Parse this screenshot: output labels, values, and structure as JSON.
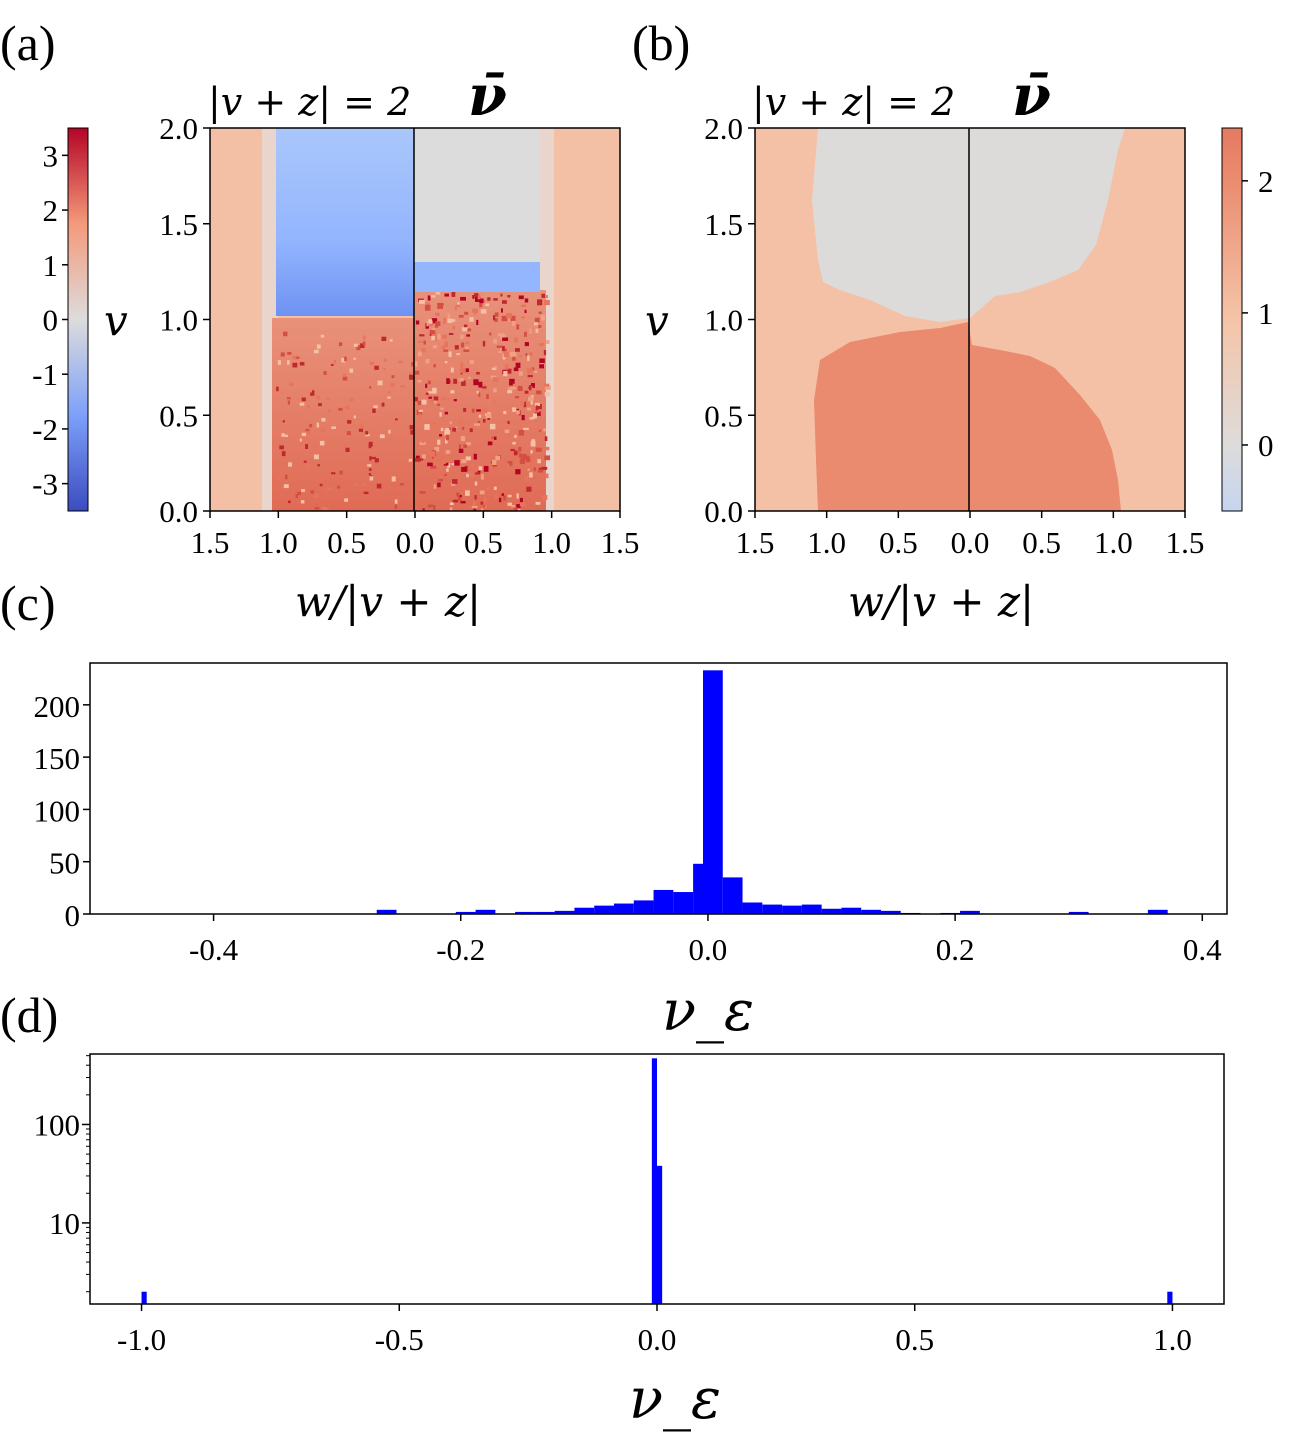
{
  "panels": {
    "a": {
      "label": "(a)",
      "title_left": "|v + z| = 2",
      "title_right": "ν̄",
      "ylabel": "v",
      "xlabel": "w/|v + z|",
      "x_ticks": [
        "1.5",
        "1.0",
        "0.5",
        "0.0",
        "0.5",
        "1.0",
        "1.5"
      ],
      "y_ticks": [
        "0.0",
        "0.5",
        "1.0",
        "1.5",
        "2.0"
      ],
      "colorbar_ticks": [
        "3",
        "2",
        "1",
        "0",
        "-1",
        "-2",
        "-3"
      ],
      "colorbar_range": [
        -3.5,
        3.5
      ]
    },
    "b": {
      "label": "(b)",
      "title_left": "|v + z| = 2",
      "title_right": "ν̄",
      "ylabel": "v",
      "xlabel": "w/|v + z|",
      "x_ticks": [
        "1.5",
        "1.0",
        "0.5",
        "0.0",
        "0.5",
        "1.0",
        "1.5"
      ],
      "y_ticks": [
        "0.0",
        "0.5",
        "1.0",
        "1.5",
        "2.0"
      ],
      "colorbar_ticks": [
        "2",
        "1",
        "0"
      ],
      "colorbar_range": [
        -0.5,
        2.4
      ]
    },
    "c": {
      "label": "(c)"
    },
    "d": {
      "label": "(d)"
    }
  },
  "colors": {
    "bar": "#0000ff",
    "cold": "#3b4cc0",
    "neutral": "#dddcdc",
    "warm": "#b40426",
    "orange_light": "#f4bfa2",
    "orange_mid": "#ea8b6f"
  },
  "chart_data": [
    {
      "type": "heatmap",
      "panel": "a",
      "title": "|v + z| = 2   ν̄",
      "xlabel": "w/|v + z|",
      "ylabel": "v",
      "xlim": [
        -1.5,
        1.5
      ],
      "ylim": [
        0,
        2
      ],
      "regions": [
        {
          "w_range": [
            -1.5,
            -1.05
          ],
          "v_range": [
            0,
            2
          ],
          "value": 1.4
        },
        {
          "w_range": [
            -1.0,
            0
          ],
          "v_range": [
            1.03,
            2
          ],
          "value": -1.2
        },
        {
          "w_range": [
            0,
            0.9
          ],
          "v_range": [
            1.2,
            2
          ],
          "value": 0
        },
        {
          "w_range": [
            -1.0,
            0
          ],
          "v_range": [
            0,
            1.0
          ],
          "value": 1.8
        },
        {
          "w_range": [
            0,
            1.0
          ],
          "v_range": [
            0,
            1.1
          ],
          "value": 2.1
        },
        {
          "w_range": [
            1.0,
            1.5
          ],
          "v_range": [
            0,
            2
          ],
          "value": 1.4
        }
      ]
    },
    {
      "type": "heatmap",
      "panel": "b",
      "title": "|v + z| = 2   ν̄",
      "xlabel": "w/|v + z|",
      "ylabel": "v",
      "xlim": [
        -1.5,
        1.5
      ],
      "ylim": [
        0,
        2
      ],
      "regions": [
        {
          "description": "outer",
          "value": 1
        },
        {
          "description": "upper central",
          "value": 0
        },
        {
          "description": "lower central",
          "value": 2
        }
      ]
    },
    {
      "type": "bar",
      "panel": "c",
      "xlabel": "ν_ε",
      "ylabel": "",
      "xlim": [
        -0.5,
        0.42
      ],
      "ylim": [
        0,
        240
      ],
      "x_ticks": [
        "-0.4",
        "-0.2",
        "0.0",
        "0.2",
        "0.4"
      ],
      "x_tick_values": [
        -0.4,
        -0.2,
        0.0,
        0.2,
        0.4
      ],
      "y_ticks": [
        "0",
        "50",
        "100",
        "150",
        "200"
      ],
      "y_tick_values": [
        0,
        50,
        100,
        150,
        200
      ],
      "bin_width": 0.016,
      "bins": [
        {
          "x": -0.26,
          "y": 4
        },
        {
          "x": -0.196,
          "y": 2
        },
        {
          "x": -0.18,
          "y": 4
        },
        {
          "x": -0.148,
          "y": 2
        },
        {
          "x": -0.132,
          "y": 2
        },
        {
          "x": -0.116,
          "y": 3
        },
        {
          "x": -0.1,
          "y": 6
        },
        {
          "x": -0.084,
          "y": 8
        },
        {
          "x": -0.068,
          "y": 10
        },
        {
          "x": -0.052,
          "y": 13
        },
        {
          "x": -0.036,
          "y": 23
        },
        {
          "x": -0.02,
          "y": 21
        },
        {
          "x": -0.004,
          "y": 48
        },
        {
          "x": 0.004,
          "y": 233
        },
        {
          "x": 0.02,
          "y": 35
        },
        {
          "x": 0.036,
          "y": 11
        },
        {
          "x": 0.052,
          "y": 9
        },
        {
          "x": 0.068,
          "y": 8
        },
        {
          "x": 0.084,
          "y": 9
        },
        {
          "x": 0.1,
          "y": 5
        },
        {
          "x": 0.116,
          "y": 6
        },
        {
          "x": 0.132,
          "y": 4
        },
        {
          "x": 0.148,
          "y": 3
        },
        {
          "x": 0.164,
          "y": 1
        },
        {
          "x": 0.196,
          "y": 1
        },
        {
          "x": 0.212,
          "y": 3
        },
        {
          "x": 0.3,
          "y": 2
        },
        {
          "x": 0.364,
          "y": 4
        }
      ]
    },
    {
      "type": "bar",
      "panel": "d",
      "xlabel": "ν_ε",
      "ylabel": "",
      "scale": "log",
      "xlim": [
        -1.1,
        1.1
      ],
      "ylim": [
        1.5,
        520
      ],
      "x_ticks": [
        "-1.0",
        "-0.5",
        "0.0",
        "0.5",
        "1.0"
      ],
      "x_tick_values": [
        -1.0,
        -0.5,
        0.0,
        0.5,
        1.0
      ],
      "y_ticks": [
        "10",
        "100"
      ],
      "y_tick_values": [
        10,
        100
      ],
      "bin_width": 0.01,
      "bins": [
        {
          "x": -0.995,
          "y": 2
        },
        {
          "x": -0.005,
          "y": 470
        },
        {
          "x": 0.005,
          "y": 38
        },
        {
          "x": 0.995,
          "y": 2
        }
      ]
    }
  ]
}
